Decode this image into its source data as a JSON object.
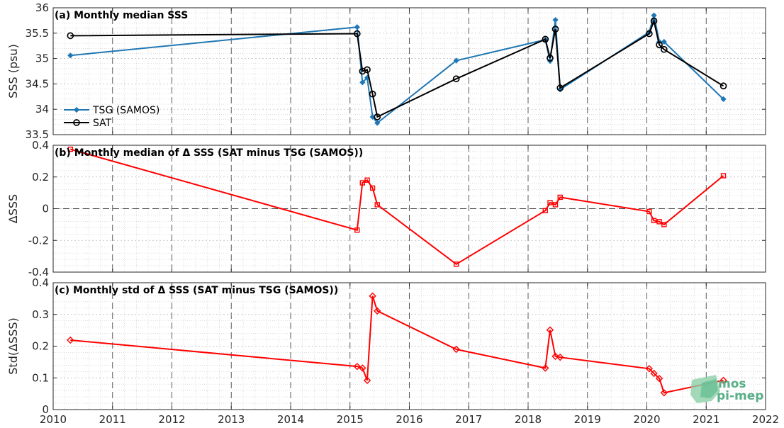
{
  "colors": {
    "tsg": "#1f77b4",
    "sat": "#000000",
    "delta": "#ff0000",
    "grid": "#c8c8c8",
    "axis": "#262626"
  },
  "logo": {
    "line1": "mos",
    "line2": "pi-mep"
  },
  "chart_data": [
    {
      "type": "line",
      "title": "(a) Monthly median SSS",
      "ylabel": "SSS (psu)",
      "xlim": [
        2010,
        2022
      ],
      "ylim": [
        33.5,
        36
      ],
      "yticks": [
        33.5,
        34,
        34.5,
        35,
        35.5,
        36
      ],
      "yticklabels": [
        "33.5",
        "34",
        "34.5",
        "35",
        "35.5",
        "36"
      ],
      "grid": true,
      "legend": "lower-left",
      "series": [
        {
          "name": "TSG (SAMOS)",
          "marker": "diamond",
          "x": [
            2010.29,
            2015.12,
            2015.21,
            2015.29,
            2015.38,
            2015.46,
            2016.79,
            2018.29,
            2018.37,
            2018.46,
            2018.54,
            2020.04,
            2020.12,
            2020.21,
            2020.29,
            2021.29
          ],
          "y": [
            35.06,
            35.62,
            34.53,
            34.62,
            33.85,
            33.73,
            34.96,
            35.37,
            34.95,
            35.76,
            34.39,
            35.52,
            35.85,
            35.33,
            35.33,
            34.2
          ]
        },
        {
          "name": "SAT",
          "marker": "circle",
          "x": [
            2010.29,
            2015.12,
            2015.21,
            2015.29,
            2015.38,
            2015.46,
            2016.79,
            2018.29,
            2018.37,
            2018.46,
            2018.54,
            2020.04,
            2020.12,
            2020.21,
            2020.29,
            2021.29
          ],
          "y": [
            35.45,
            35.49,
            34.75,
            34.78,
            34.3,
            33.85,
            34.6,
            35.38,
            35.01,
            35.58,
            34.42,
            35.49,
            35.74,
            35.27,
            35.18,
            34.46
          ]
        }
      ]
    },
    {
      "type": "line",
      "title": "(b) Monthly median of Δ SSS (SAT minus TSG (SAMOS))",
      "ylabel": "ΔSSS",
      "xlim": [
        2010,
        2022
      ],
      "ylim": [
        -0.4,
        0.4
      ],
      "yticks": [
        -0.4,
        -0.2,
        0,
        0.2,
        0.4
      ],
      "yticklabels": [
        "-0.4",
        "-0.2",
        "0",
        "0.2",
        "0.4"
      ],
      "grid": true,
      "zero_line": true,
      "series": [
        {
          "marker": "square",
          "x": [
            2010.29,
            2015.12,
            2015.21,
            2015.29,
            2015.38,
            2015.46,
            2016.79,
            2018.29,
            2018.37,
            2018.46,
            2018.54,
            2020.04,
            2020.12,
            2020.21,
            2020.29,
            2021.29
          ],
          "y": [
            0.375,
            -0.135,
            0.163,
            0.18,
            0.13,
            0.025,
            -0.35,
            -0.012,
            0.038,
            0.025,
            0.072,
            -0.018,
            -0.075,
            -0.082,
            -0.1,
            0.208
          ]
        }
      ]
    },
    {
      "type": "line",
      "title": "(c) Monthly std of Δ SSS (SAT minus TSG (SAMOS))",
      "ylabel": "Std(ΔSSS)",
      "xlim": [
        2010,
        2022
      ],
      "ylim": [
        0,
        0.4
      ],
      "yticks": [
        0,
        0.1,
        0.2,
        0.3,
        0.4
      ],
      "yticklabels": [
        "0",
        "0.1",
        "0.2",
        "0.3",
        "0.4"
      ],
      "xticks": [
        2010,
        2011,
        2012,
        2013,
        2014,
        2015,
        2016,
        2017,
        2018,
        2019,
        2020,
        2021,
        2022
      ],
      "xticklabels": [
        "2010",
        "2011",
        "2012",
        "2013",
        "2014",
        "2015",
        "2016",
        "2017",
        "2018",
        "2019",
        "2020",
        "2021",
        "2022"
      ],
      "grid": true,
      "series": [
        {
          "marker": "diamond",
          "x": [
            2010.29,
            2015.12,
            2015.21,
            2015.29,
            2015.38,
            2015.46,
            2016.79,
            2018.29,
            2018.37,
            2018.46,
            2018.54,
            2020.04,
            2020.12,
            2020.21,
            2020.29,
            2021.29
          ],
          "y": [
            0.219,
            0.136,
            0.131,
            0.092,
            0.358,
            0.311,
            0.19,
            0.131,
            0.251,
            0.168,
            0.165,
            0.129,
            0.114,
            0.098,
            0.053,
            0.092
          ]
        }
      ]
    }
  ]
}
